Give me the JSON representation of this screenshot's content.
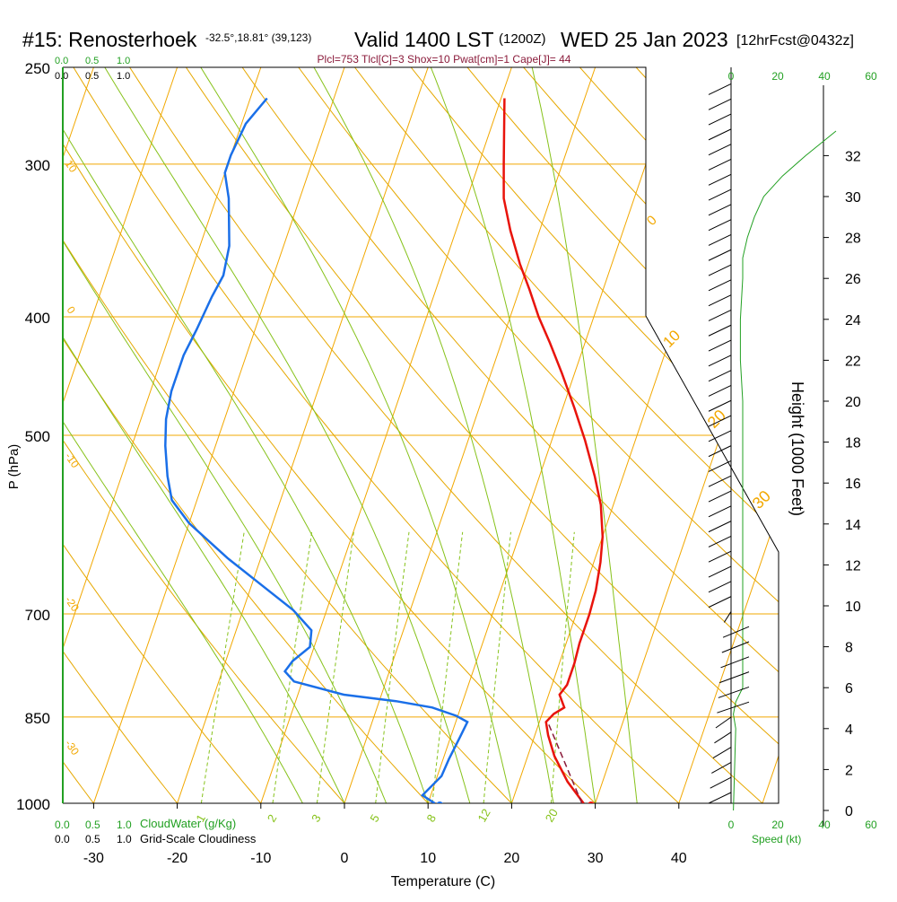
{
  "header": {
    "station": "#15: Renosterhoek",
    "location": "-32.5°,18.81° (39,123)",
    "valid": "Valid 1400 LST",
    "utc": "(1200Z)",
    "date": "WED 25 Jan 2023",
    "forecast": "[12hrFcst@0432z]",
    "indices": "Plcl=753 Tlcl[C]=3 Shox=10 Pwat[cm]=1 Cape[J]= 44"
  },
  "axes": {
    "ylabel": "P (hPa)",
    "xlabel": "Temperature (C)",
    "height_label": "Height (1000 Feet)",
    "speed_label": "Speed (kt)",
    "cloudwater_label": "CloudWater (g/Kg)",
    "cloudiness_label": "Grid-Scale Cloudiness",
    "scale_small": [
      "0.0",
      "0.5",
      "1.0"
    ],
    "speed_ticks": [
      "0",
      "20",
      "40",
      "60"
    ]
  },
  "chart_data": {
    "type": "line",
    "title": "#15: Renosterhoek Valid 1400 LST (1200Z) WED 25 Jan 2023",
    "xlabel": "Temperature (C)",
    "ylabel": "P (hPa)",
    "xlim": [
      -35,
      45
    ],
    "ylim": [
      1000,
      250
    ],
    "y_scale": "log",
    "x_ticks": [
      -30,
      -20,
      -10,
      0,
      10,
      20,
      30,
      40
    ],
    "pressure_ticks": [
      250,
      300,
      400,
      500,
      700,
      850,
      1000
    ],
    "height_ticks_kft": [
      0,
      2,
      4,
      6,
      8,
      10,
      12,
      14,
      16,
      18,
      20,
      22,
      24,
      26,
      28,
      30,
      32
    ],
    "isotherm_labels": [
      "10",
      "0",
      "-10",
      "-20",
      "-30",
      "0",
      "10",
      "20",
      "30"
    ],
    "mixing_ratio_labels": [
      "1",
      "2",
      "3",
      "5",
      "8",
      "12",
      "20"
    ],
    "series": [
      {
        "name": "Temperature",
        "color": "#e8140c",
        "points": [
          [
            28.6,
            1000
          ],
          [
            25.8,
            960
          ],
          [
            23.2,
            915
          ],
          [
            21.6,
            880
          ],
          [
            20.8,
            858
          ],
          [
            21.4,
            845
          ],
          [
            22.4,
            835
          ],
          [
            21.3,
            815
          ],
          [
            21.8,
            800
          ],
          [
            21.8,
            768
          ],
          [
            21.6,
            740
          ],
          [
            21.6,
            700
          ],
          [
            21.4,
            670
          ],
          [
            20.8,
            635
          ],
          [
            20.0,
            605
          ],
          [
            18.5,
            570
          ],
          [
            16.6,
            540
          ],
          [
            14.0,
            505
          ],
          [
            11.4,
            475
          ],
          [
            8.5,
            445
          ],
          [
            5.8,
            420
          ],
          [
            3.4,
            400
          ],
          [
            1.2,
            380
          ],
          [
            -1.0,
            362
          ],
          [
            -3.5,
            340
          ],
          [
            -5.6,
            320
          ],
          [
            -7.0,
            300
          ],
          [
            -8.3,
            282
          ],
          [
            -9.6,
            265
          ]
        ]
      },
      {
        "name": "Dewpoint",
        "color": "#1a6fe8",
        "points": [
          [
            10.8,
            1000
          ],
          [
            9.0,
            985
          ],
          [
            10.5,
            950
          ],
          [
            10.7,
            920
          ],
          [
            11.1,
            885
          ],
          [
            11.4,
            858
          ],
          [
            9.8,
            848
          ],
          [
            6.6,
            835
          ],
          [
            2.0,
            825
          ],
          [
            -4.5,
            815
          ],
          [
            -11.0,
            795
          ],
          [
            -12.5,
            780
          ],
          [
            -12.0,
            765
          ],
          [
            -10.5,
            745
          ],
          [
            -11.0,
            722
          ],
          [
            -14.0,
            695
          ],
          [
            -18.5,
            665
          ],
          [
            -24.0,
            630
          ],
          [
            -30.0,
            590
          ],
          [
            -33.0,
            565
          ],
          [
            -34.5,
            540
          ],
          [
            -36.0,
            510
          ],
          [
            -37.0,
            485
          ],
          [
            -37.5,
            460
          ],
          [
            -37.5,
            430
          ],
          [
            -37.0,
            410
          ],
          [
            -36.5,
            385
          ],
          [
            -36.0,
            370
          ],
          [
            -36.5,
            350
          ],
          [
            -38.5,
            320
          ],
          [
            -40.0,
            305
          ],
          [
            -40.0,
            295
          ],
          [
            -39.5,
            278
          ],
          [
            -38.0,
            265
          ]
        ]
      },
      {
        "name": "Parcel",
        "color": "#8a1a3a",
        "points": [
          [
            28.4,
            1000
          ],
          [
            21.0,
            858
          ]
        ]
      }
    ],
    "surface_markers": [
      {
        "name": "surface-temperature",
        "t": 29.5,
        "p": 1000,
        "color": "#e8140c"
      },
      {
        "name": "surface-dewpoint",
        "t": 11.4,
        "p": 1000,
        "color": "#1a6fe8"
      }
    ],
    "wind_speed_profile": {
      "units": "kt",
      "xlim": [
        0,
        60
      ],
      "color": "#22a022",
      "points": [
        [
          1,
          0
        ],
        [
          2,
          4
        ],
        [
          1,
          4.7
        ],
        [
          2,
          5.3
        ],
        [
          5,
          6
        ],
        [
          5,
          8
        ],
        [
          5,
          10
        ],
        [
          5,
          12
        ],
        [
          5,
          14
        ],
        [
          5,
          16
        ],
        [
          5,
          18
        ],
        [
          5,
          20
        ],
        [
          4,
          22
        ],
        [
          4,
          24
        ],
        [
          5,
          26
        ],
        [
          5,
          27
        ],
        [
          7,
          28
        ],
        [
          10,
          29
        ],
        [
          14,
          30
        ],
        [
          22,
          31
        ],
        [
          32,
          32
        ],
        [
          45,
          33.2
        ]
      ]
    }
  },
  "colors": {
    "isobar": "#f2a800",
    "isotherm": "#f2a800",
    "dry_adiabat": "#e6a800",
    "moist_adiabat": "#86c21a",
    "mixing_ratio": "#86c21a",
    "cloud_scale": "#22a022",
    "indices": "#8a1a3a"
  }
}
